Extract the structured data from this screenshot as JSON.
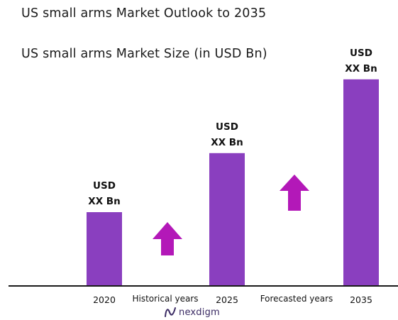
{
  "chart_data": {
    "type": "bar",
    "title": "US small arms Market Outlook to 2035",
    "subtitle": "US small arms Market Size (in USD Bn)",
    "categories": [
      "2020",
      "2025",
      "2035"
    ],
    "values": [
      1.0,
      1.8,
      2.8
    ],
    "data_labels": [
      [
        "USD",
        "XX Bn"
      ],
      [
        "USD",
        "XX Bn"
      ],
      [
        "USD",
        "XX Bn"
      ]
    ],
    "ylim": [
      0,
      3.0
    ],
    "grid": false,
    "bar_color": "#8a3fbf",
    "arrow_color": "#b318b8",
    "annotations": [
      "Historical years",
      "Forecasted years"
    ]
  },
  "brand": {
    "logo_text": "nexdigm"
  }
}
